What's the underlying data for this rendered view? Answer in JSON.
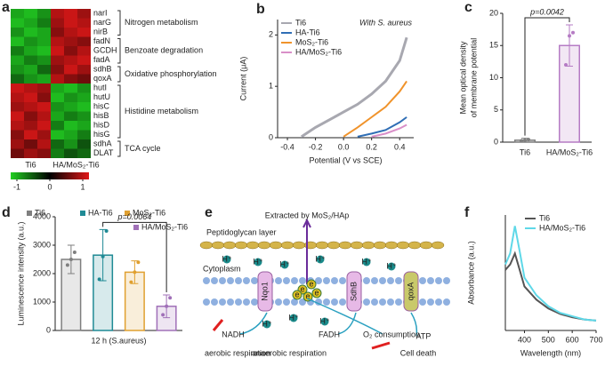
{
  "chart_data": [
    {
      "type": "heatmap",
      "label": "a",
      "colorscale": [
        "#22d022",
        "#000000",
        "#e01818"
      ],
      "zlim": [
        -1,
        1
      ],
      "zticks": [
        -1,
        0,
        1
      ],
      "column_groups": [
        "Ti6",
        "HA/MoS₂-Ti6"
      ],
      "row_groups": [
        {
          "name": "Nitrogen metabolism",
          "color": "#d62728",
          "rows": [
            "narI",
            "narG",
            "nirB"
          ],
          "values": [
            [
              -0.8,
              -0.9,
              -0.7,
              0.8,
              0.9,
              0.7
            ],
            [
              -0.9,
              -0.8,
              -0.6,
              0.7,
              0.9,
              0.8
            ],
            [
              -0.7,
              -0.9,
              -0.8,
              0.6,
              0.8,
              0.9
            ]
          ]
        },
        {
          "name": "Benzoate degradation",
          "color": "#d62728",
          "rows": [
            "fadN",
            "GCDH",
            "fadA"
          ],
          "values": [
            [
              -0.9,
              -0.7,
              -0.8,
              0.8,
              0.7,
              0.6
            ],
            [
              -0.6,
              -0.8,
              -0.9,
              0.9,
              0.6,
              0.8
            ],
            [
              -0.8,
              -0.6,
              -0.7,
              0.7,
              0.8,
              0.9
            ]
          ]
        },
        {
          "name": "Oxidative phosphorylation",
          "color": "#2ca02c",
          "rows": [
            "sdhB",
            "qoxA"
          ],
          "values": [
            [
              -0.7,
              -0.8,
              -0.5,
              0.6,
              0.9,
              0.7
            ],
            [
              -0.5,
              -0.7,
              -0.8,
              0.8,
              0.6,
              0.5
            ]
          ]
        },
        {
          "name": "Histidine metabolism",
          "color": "#2ca02c",
          "rows": [
            "hutI",
            "hutU",
            "hisC",
            "hisB",
            "hisD",
            "hisG"
          ],
          "values": [
            [
              0.9,
              0.8,
              0.7,
              -0.8,
              -0.9,
              -0.7
            ],
            [
              0.8,
              0.9,
              0.6,
              -0.9,
              -0.7,
              -0.8
            ],
            [
              0.7,
              0.8,
              0.9,
              -0.7,
              -0.8,
              -0.9
            ],
            [
              0.9,
              0.6,
              0.8,
              -0.8,
              -0.6,
              -0.7
            ],
            [
              0.8,
              0.7,
              0.9,
              -0.6,
              -0.9,
              -0.8
            ],
            [
              0.6,
              0.9,
              0.7,
              -0.9,
              -0.8,
              -0.6
            ]
          ]
        },
        {
          "name": "TCA cycle",
          "color": "#2ca02c",
          "rows": [
            "sdhA",
            "DLAT"
          ],
          "values": [
            [
              0.7,
              0.5,
              0.8,
              -0.5,
              -0.7,
              -0.4
            ],
            [
              0.5,
              0.7,
              0.6,
              -0.6,
              -0.4,
              -0.5
            ]
          ]
        }
      ]
    },
    {
      "type": "line",
      "label": "b",
      "xlabel": "Potential (V vs SCE)",
      "ylabel": "Current (μA)",
      "annotation": "With S. aureus",
      "legend": "upper left",
      "xlim": [
        -0.47,
        0.5
      ],
      "xticks": [
        -0.4,
        -0.2,
        {
          "value": 0,
          "label": "0.0"
        },
        0.2,
        0.4
      ],
      "ylim": [
        0,
        2.3
      ],
      "yticks": [
        0,
        1,
        2
      ],
      "x": [
        -0.45,
        -0.4,
        -0.3,
        -0.2,
        -0.1,
        0,
        0.1,
        0.2,
        0.3,
        0.4,
        0.45
      ],
      "series": [
        {
          "name": "Ti6",
          "color": "#a8a8b0",
          "values": [
            null,
            null,
            0.02,
            0.2,
            0.35,
            0.5,
            0.65,
            0.85,
            1.1,
            1.5,
            1.95
          ]
        },
        {
          "name": "HA-Ti6",
          "color": "#2f6eb5",
          "values": [
            null,
            null,
            null,
            null,
            null,
            null,
            0.02,
            0.08,
            0.15,
            0.3,
            0.4
          ]
        },
        {
          "name": "MoS₂-Ti6",
          "color": "#f0932b",
          "values": [
            null,
            null,
            null,
            null,
            null,
            0.02,
            0.2,
            0.4,
            0.6,
            0.9,
            1.1
          ]
        },
        {
          "name": "HA/MoS₂-Ti6",
          "color": "#d98fc8",
          "values": [
            null,
            null,
            null,
            null,
            null,
            null,
            null,
            0.02,
            0.08,
            0.18,
            0.25
          ]
        }
      ]
    },
    {
      "type": "bar",
      "label": "c",
      "ylabel": [
        "Mean optical density",
        "of membrane potential"
      ],
      "annotation": "p=0.0042",
      "categories": [
        "Ti6",
        "HA/MoS₂-Ti6"
      ],
      "values": [
        0.3,
        15
      ],
      "errors": [
        0.3,
        3.2
      ],
      "colors": [
        "#7f7f7f",
        "#b57bc4"
      ],
      "points": [
        [
          0.2,
          0.3,
          0.4
        ],
        [
          12,
          16.5,
          17
        ]
      ],
      "ylim": [
        0,
        20
      ],
      "yticks": [
        0,
        5,
        10,
        15,
        20
      ]
    },
    {
      "type": "bar",
      "label": "d",
      "ylabel": "Luminescence intensity (a.u.)",
      "annotation": "p=0.0064",
      "categories": [
        "12 h (S.aureus)"
      ],
      "ylim": [
        0,
        4000
      ],
      "yticks": [
        0,
        1000,
        2000,
        3000,
        4000
      ],
      "series": [
        {
          "name": "Ti6",
          "color": "#7f7f7f",
          "values": [
            2500
          ],
          "errors": [
            500
          ],
          "points": [
            [
              2300,
              2500,
              2750
            ]
          ]
        },
        {
          "name": "HA-Ti6",
          "color": "#1f8a95",
          "values": [
            2650
          ],
          "errors": [
            900
          ],
          "points": [
            [
              1800,
              2600,
              3500
            ]
          ]
        },
        {
          "name": "MoS₂-Ti6",
          "color": "#e0a030",
          "values": [
            2050
          ],
          "errors": [
            400
          ],
          "points": [
            [
              1700,
              2050,
              2400
            ]
          ]
        },
        {
          "name": "HA/MoS₂-Ti6",
          "color": "#a070b8",
          "values": [
            850
          ],
          "errors": [
            400
          ],
          "points": [
            [
              550,
              850,
              1150
            ]
          ]
        }
      ]
    },
    {
      "type": "line",
      "label": "f",
      "xlabel": "Wavelength (nm)",
      "ylabel": "Absorbance (a.u.)",
      "legend": "upper right",
      "xlim": [
        320,
        700
      ],
      "xticks": [
        400,
        500,
        600,
        700
      ],
      "ylim": [
        0,
        1.05
      ],
      "x": [
        320,
        340,
        360,
        380,
        400,
        450,
        500,
        550,
        600,
        650,
        700
      ],
      "series": [
        {
          "name": "Ti6",
          "color": "#555555",
          "values": [
            0.55,
            0.6,
            0.7,
            0.55,
            0.4,
            0.28,
            0.2,
            0.15,
            0.12,
            0.1,
            0.09
          ]
        },
        {
          "name": "HA/MoS₂-Ti6",
          "color": "#5fd8e8",
          "values": [
            0.6,
            0.7,
            0.95,
            0.72,
            0.48,
            0.32,
            0.22,
            0.16,
            0.13,
            0.1,
            0.09
          ]
        }
      ]
    }
  ],
  "diagram": {
    "label": "e",
    "extracted": "Extracted by MoS₂/HAp",
    "peptidoglycan": "Peptidoglycan layer",
    "cytoplasm": "Cytoplasm",
    "proteins": [
      "Nqo1",
      "SdhB",
      "qoxA"
    ],
    "proton": "H⁺",
    "electron": "e",
    "products": [
      "NADH",
      "FADH",
      "O₂ consumption",
      "ATP"
    ],
    "outcomes": [
      "aerobic respiration",
      "anaerobic respiration",
      "Cell death"
    ]
  }
}
